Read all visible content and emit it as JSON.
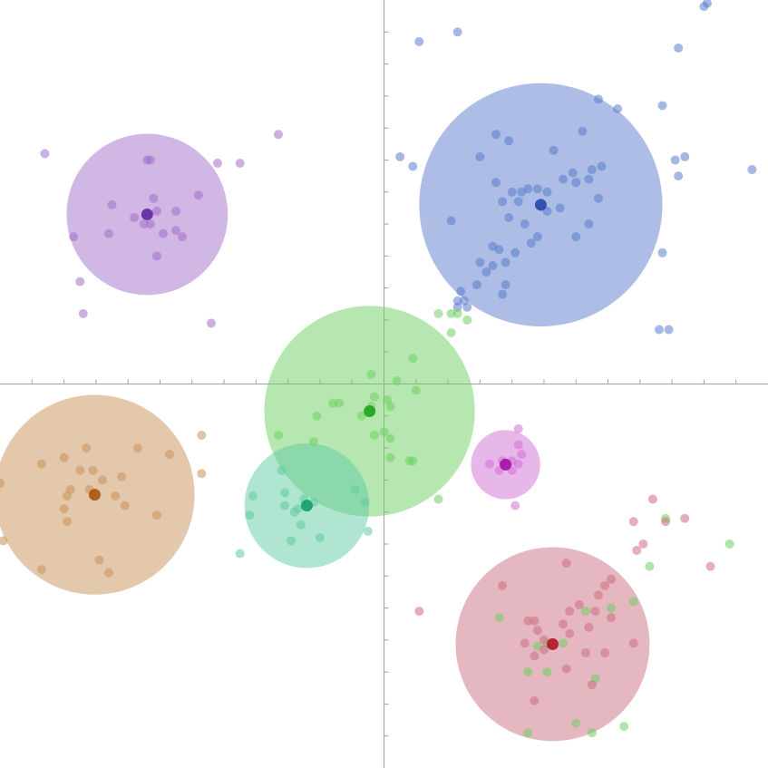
{
  "chart_data": {
    "type": "scatter",
    "xlim": [
      -12,
      12
    ],
    "ylim": [
      -12,
      12
    ],
    "xticks": [
      -11,
      -10,
      -9,
      -8,
      -7,
      -6,
      -5,
      -4,
      -3,
      -2,
      -1,
      1,
      2,
      3,
      4,
      5,
      6,
      7,
      8,
      9,
      10,
      11
    ],
    "yticks": [
      -11,
      -10,
      -9,
      -8,
      -7,
      -6,
      -5,
      -4,
      -3,
      -2,
      -1,
      1,
      2,
      3,
      4,
      5,
      6,
      7,
      8,
      9,
      10,
      11
    ],
    "series": [
      {
        "color": "#a370c9",
        "center_color": "#5a1f9e",
        "center": [
          -7.4,
          5.3
        ],
        "radius": 2.52,
        "x": [
          -10.6,
          -7.4,
          -7.3,
          -5.2,
          -4.5,
          -3.3,
          -5.8,
          -8.5,
          -7.2,
          -7.8,
          -7.5,
          -7.3,
          -7.1,
          -6.5,
          -6.5,
          -6.3,
          -6.9,
          -8.6,
          -9.7,
          -7.1,
          -9.5,
          -9.4,
          -5.4
        ],
        "y": [
          7.2,
          7.0,
          7.0,
          6.9,
          6.9,
          7.8,
          5.9,
          5.6,
          5.8,
          5.2,
          5.0,
          5.0,
          5.4,
          5.4,
          4.8,
          4.6,
          4.7,
          4.7,
          4.6,
          4.0,
          3.2,
          2.2,
          1.9
        ]
      },
      {
        "color": "#5b7ccc",
        "center_color": "#1a3fa8",
        "center": [
          4.9,
          5.6
        ],
        "radius": 3.8,
        "x": [
          1.1,
          2.3,
          10.0,
          10.1,
          9.2,
          6.7,
          7.3,
          8.7,
          3.5,
          3.9,
          6.2,
          5.3,
          0.5,
          0.9,
          3.0,
          9.4,
          9.1,
          9.2,
          11.5,
          6.5,
          6.8,
          5.9,
          5.6,
          3.5,
          6.0,
          6.4,
          4.0,
          4.3,
          4.5,
          4.8,
          5.1,
          3.7,
          4.2,
          5.5,
          6.7,
          3.9,
          4.4,
          5.1,
          2.1,
          6.4,
          4.8,
          4.6,
          6.0,
          3.4,
          3.6,
          4.1,
          3.0,
          3.4,
          3.8,
          3.2,
          2.9,
          3.8,
          2.4,
          3.7,
          2.3,
          2.5,
          2.3,
          2.6,
          8.7,
          8.6,
          8.9
        ],
        "y": [
          10.7,
          11.0,
          11.8,
          11.9,
          10.5,
          8.9,
          8.6,
          8.7,
          7.8,
          7.6,
          7.9,
          7.3,
          7.1,
          6.8,
          7.1,
          7.1,
          7.0,
          6.5,
          6.7,
          6.7,
          6.8,
          6.6,
          6.4,
          6.3,
          6.3,
          6.4,
          6.0,
          6.0,
          6.1,
          6.1,
          6.0,
          5.7,
          5.7,
          5.5,
          5.8,
          5.2,
          5.0,
          5.4,
          5.1,
          5.0,
          4.6,
          4.4,
          4.6,
          4.3,
          4.2,
          4.1,
          3.8,
          3.7,
          3.8,
          3.5,
          3.1,
          3.1,
          2.9,
          2.8,
          2.6,
          2.6,
          2.4,
          2.4,
          4.1,
          1.7,
          1.7
        ]
      },
      {
        "color": "#6fcf62",
        "center_color": "#13a013",
        "center": [
          -0.45,
          -0.85
        ],
        "radius": 3.29,
        "x": [
          1.7,
          2.1,
          2.3,
          2.6,
          2.1,
          0.9,
          -0.4,
          0.4,
          1.0,
          -0.3,
          -1.6,
          -1.4,
          -0.4,
          0.1,
          0.2,
          -0.7,
          -2.1,
          -0.3,
          0.0,
          0.2,
          -3.3,
          -2.2,
          0.2,
          0.8,
          0.9,
          1.7,
          3.6,
          8.8,
          10.8,
          8.3,
          7.8,
          7.1,
          6.3,
          5.1,
          5.6,
          4.5,
          5.1,
          6.6,
          6.0,
          7.5,
          4.5,
          6.5,
          4.8
        ],
        "y": [
          2.2,
          2.2,
          2.2,
          2.0,
          1.6,
          0.8,
          0.3,
          0.1,
          -0.2,
          -0.4,
          -0.6,
          -0.6,
          -0.7,
          -0.5,
          -0.7,
          -1.0,
          -1.0,
          -1.6,
          -1.5,
          -1.7,
          -1.6,
          -1.8,
          -2.3,
          -2.4,
          -2.4,
          -3.6,
          -7.3,
          -4.2,
          -5.0,
          -5.7,
          -6.8,
          -7.0,
          -7.1,
          -8.1,
          -8.1,
          -9.0,
          -9.0,
          -9.2,
          -10.6,
          -10.7,
          -10.9,
          -10.9,
          -8.2
        ]
      },
      {
        "color": "#c8915a",
        "center_color": "#a44f00",
        "center": [
          -9.04,
          -3.46
        ],
        "radius": 3.12,
        "x": [
          -5.7,
          -5.7,
          -9.3,
          -7.7,
          -6.7,
          -10.7,
          -10.0,
          -9.5,
          -9.1,
          -8.8,
          -8.2,
          -9.8,
          -9.2,
          -9.9,
          -8.4,
          -8.1,
          -10.0,
          -12.0,
          -7.1,
          -9.9,
          -11.9,
          -8.9,
          -10.7,
          -8.6
        ],
        "y": [
          -1.6,
          -2.8,
          -2.0,
          -2.0,
          -2.2,
          -2.5,
          -2.3,
          -2.7,
          -2.7,
          -3.0,
          -2.9,
          -3.3,
          -3.3,
          -3.5,
          -3.5,
          -3.8,
          -3.9,
          -3.1,
          -4.1,
          -4.3,
          -4.9,
          -5.5,
          -5.8,
          -5.9
        ]
      },
      {
        "color": "#5fcca3",
        "center_color": "#0a9c62",
        "center": [
          -2.41,
          -3.8
        ],
        "radius": 1.95,
        "x": [
          -3.2,
          -4.1,
          -3.1,
          -2.5,
          -0.9,
          -0.6,
          -4.2,
          -3.1,
          -2.2,
          -2.8,
          -2.7,
          -2.6,
          -0.5,
          -2.9,
          -2.0,
          -4.5
        ],
        "y": [
          -2.7,
          -3.5,
          -3.4,
          -3.6,
          -3.3,
          -3.7,
          -4.1,
          -3.8,
          -3.7,
          -4.0,
          -3.9,
          -4.4,
          -4.6,
          -4.9,
          -4.8,
          -5.3
        ]
      },
      {
        "color": "#d070d6",
        "center_color": "#a0069e",
        "center": [
          3.8,
          -2.52
        ],
        "radius": 1.08,
        "x": [
          4.2,
          4.2,
          4.3,
          3.7,
          4.0,
          3.3,
          4.2,
          3.6,
          4.0,
          4.1
        ],
        "y": [
          -1.4,
          -1.9,
          -2.2,
          -2.4,
          -2.4,
          -2.5,
          -2.5,
          -2.7,
          -2.7,
          -3.8
        ]
      },
      {
        "color": "#cc6f82",
        "center_color": "#b00a1e",
        "center": [
          5.27,
          -8.13
        ],
        "radius": 3.03,
        "x": [
          8.4,
          7.8,
          8.8,
          9.4,
          8.1,
          7.9,
          10.2,
          5.7,
          7.1,
          6.9,
          6.7,
          3.7,
          6.1,
          5.8,
          6.6,
          7.1,
          1.1,
          4.5,
          4.7,
          5.6,
          6.4,
          4.8,
          5.8,
          5.0,
          4.4,
          5.0,
          7.8,
          6.3,
          6.9,
          4.7,
          5.7,
          6.5,
          4.7
        ],
        "y": [
          -3.6,
          -4.3,
          -4.3,
          -4.2,
          -5.0,
          -5.2,
          -5.7,
          -5.6,
          -6.1,
          -6.3,
          -6.6,
          -6.3,
          -6.9,
          -7.1,
          -7.1,
          -7.3,
          -7.1,
          -7.4,
          -7.4,
          -7.5,
          -7.6,
          -7.7,
          -7.8,
          -8.0,
          -8.1,
          -8.3,
          -8.1,
          -8.4,
          -8.4,
          -8.5,
          -8.9,
          -9.4,
          -9.9
        ]
      }
    ]
  }
}
